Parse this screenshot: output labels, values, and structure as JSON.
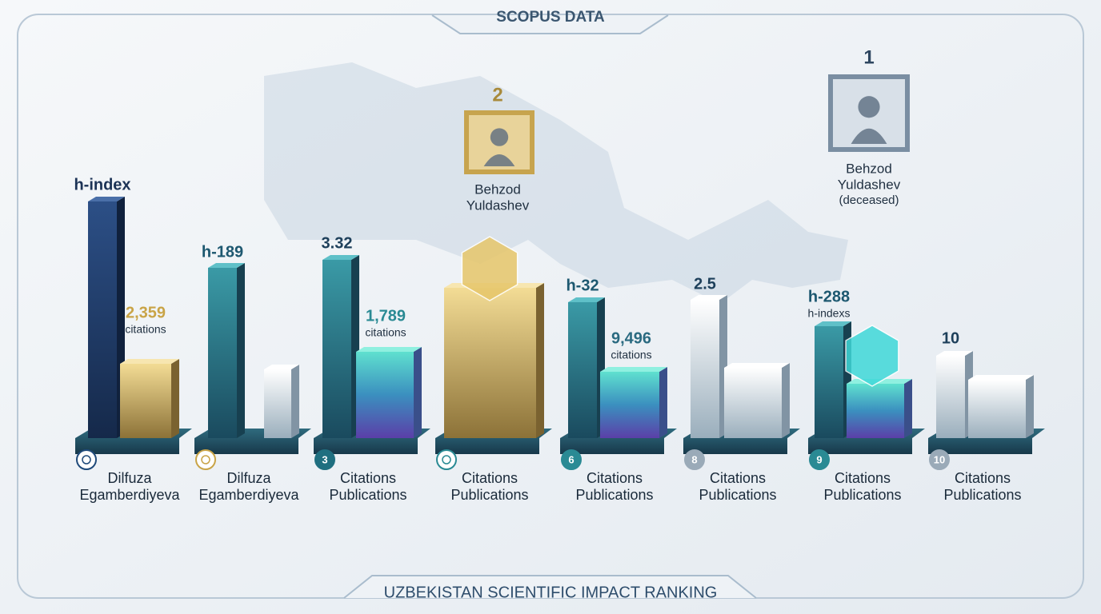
{
  "header": {
    "title": "SCOPUS DATA"
  },
  "footer": {
    "title": "UZBEKISTAN SCIENTIFIC IMPACT RANKING"
  },
  "featured": [
    {
      "rank": 2,
      "name": [
        "Behzod",
        "Yuldashev"
      ]
    },
    {
      "rank": 1,
      "name": [
        "Behzod",
        "Yuldashev"
      ],
      "note": "(deceased)"
    }
  ],
  "columns": [
    {
      "top": "h-index",
      "value": "2,359",
      "unit": "citations",
      "label": [
        "Dilfuza",
        "Egamberdiyeva"
      ]
    },
    {
      "top": "h-189",
      "label": [
        "Dilfuza",
        "Egamberdiyeva"
      ]
    },
    {
      "top": 3.32,
      "value": "1,789",
      "unit": "citations",
      "badge": 3,
      "label": [
        "Citations",
        "Publications"
      ]
    },
    {
      "label": [
        "Citations",
        "Publications"
      ]
    },
    {
      "top": "h-32",
      "value": "9,496",
      "unit": "citations",
      "badge": 6,
      "label": [
        "Citations",
        "Publications"
      ]
    },
    {
      "top": 2.5,
      "badge": 8,
      "label": [
        "Citations",
        "Publications"
      ]
    },
    {
      "top": "h-288",
      "unit": "h-indexs",
      "badge": 9,
      "label": [
        "Citations",
        "Publications"
      ]
    },
    {
      "top": 10,
      "badge": 10,
      "label": [
        "Citations",
        "Publications"
      ]
    }
  ]
}
